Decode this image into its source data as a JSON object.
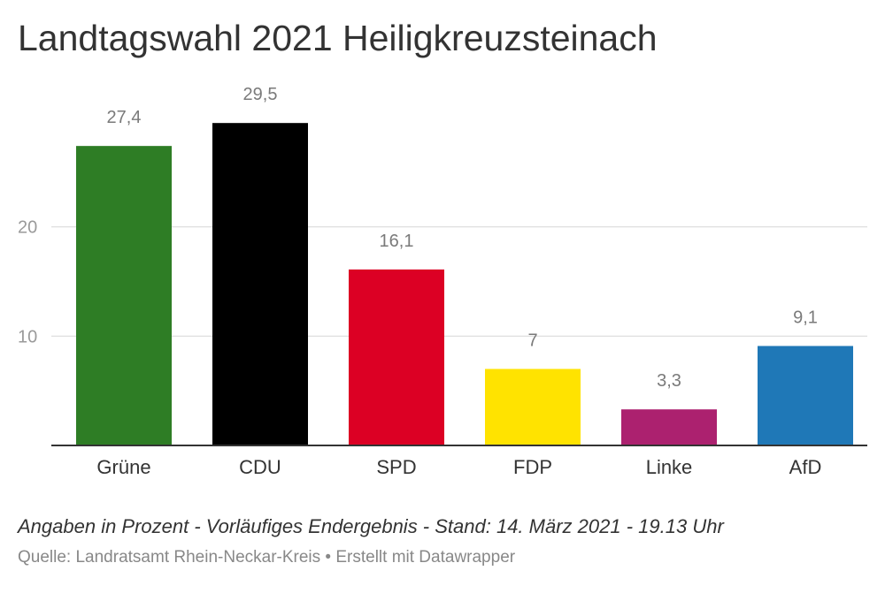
{
  "title": "Landtagswahl 2021 Heiligkreuzsteinach",
  "notes": "Angaben in Prozent - Vorläufiges Endergebnis - Stand: 14. März 2021 - 19.13 Uhr",
  "source": {
    "label": "Quelle: Landratsamt Rhein-Neckar-Kreis",
    "separator": "•",
    "credit": "Erstellt mit Datawrapper"
  },
  "chart_data": {
    "type": "bar",
    "title": "Landtagswahl 2021 Heiligkreuzsteinach",
    "xlabel": "",
    "ylabel": "",
    "categories": [
      "Grüne",
      "CDU",
      "SPD",
      "FDP",
      "Linke",
      "AfD"
    ],
    "values": [
      27.4,
      29.5,
      16.1,
      7,
      3.3,
      9.1
    ],
    "value_labels": [
      "27,4",
      "29,5",
      "16,1",
      "7",
      "3,3",
      "9,1"
    ],
    "colors": [
      "#2e7d25",
      "#000000",
      "#dc0024",
      "#ffe300",
      "#ac216f",
      "#1f78b7"
    ],
    "y_ticks": [
      10,
      20
    ],
    "y_tick_labels": [
      "10",
      "20"
    ],
    "ylim": [
      0,
      30
    ],
    "grid": true,
    "legend": "none"
  }
}
